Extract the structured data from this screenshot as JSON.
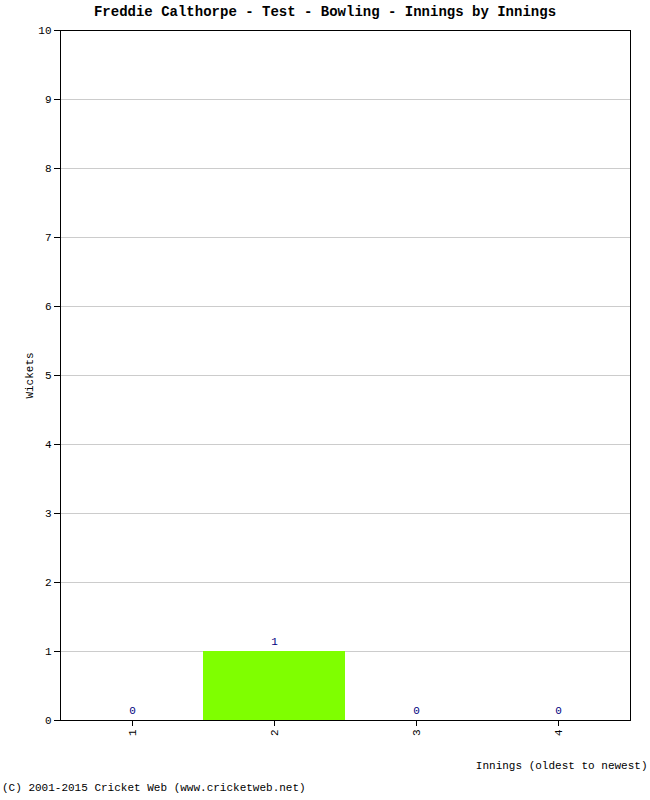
{
  "chart_data": {
    "type": "bar",
    "title": "Freddie Calthorpe - Test - Bowling - Innings by Innings",
    "x_label": "Innings (oldest to newest)",
    "y_label": "Wickets",
    "caption": "(C) 2001-2015 Cricket Web (www.cricketweb.net)",
    "categories": [
      "1",
      "2",
      "3",
      "4"
    ],
    "values": [
      0,
      1,
      0,
      0
    ],
    "color": "#7fff00",
    "ylim": [
      0,
      10
    ],
    "yticks": [
      0,
      1,
      2,
      3,
      4,
      5,
      6,
      7,
      8,
      9,
      10
    ],
    "grid": true,
    "data_labels": true
  }
}
